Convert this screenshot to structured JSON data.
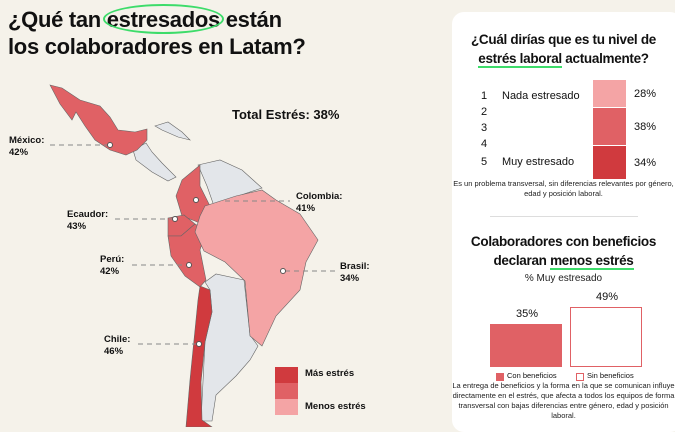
{
  "title": {
    "line1_pre": "¿Qué tan ",
    "line1_highlight": "estresados",
    "line1_post": " están",
    "line2": "los colaboradores en Latam?"
  },
  "map": {
    "total": "Total Estrés: 38%",
    "countries": [
      {
        "name": "México:",
        "value": "42%"
      },
      {
        "name": "Colombia:",
        "value": "41%"
      },
      {
        "name": "Ecaudor:",
        "value": "43%"
      },
      {
        "name": "Perú:",
        "value": "42%"
      },
      {
        "name": "Brasil:",
        "value": "34%"
      },
      {
        "name": "Chile:",
        "value": "46%"
      }
    ],
    "legend": {
      "high": "Más estrés",
      "low": "Menos estrés"
    },
    "colors": {
      "high": "#d03a3e",
      "mid": "#e06165",
      "low": "#f4a4a5",
      "other": "#e3e6ea"
    }
  },
  "panel1": {
    "question_l1": "¿Cuál dirías que es tu nivel de",
    "question_l2_ul": "estrés laboral",
    "question_l2_rest": " actualmente?",
    "scale": [
      "1",
      "2",
      "3",
      "4",
      "5"
    ],
    "scale_low": "Nada estresado",
    "scale_high": "Muy estresado",
    "note": "Es un problema transversal, sin diferencias relevantes por género, edad y posición laboral."
  },
  "panel2": {
    "title_l1": "Colaboradores con beneficios",
    "title_l2_pre": "declaran ",
    "title_l2_ul": "menos estrés",
    "subtitle": "% Muy estresado",
    "note": "La entrega de beneficios y la forma en la que se comunican influye directamente en el estrés, que afecta a todos los equipos de forma transversal con bajas diferencias entre género, edad y posición laboral."
  },
  "chart_data": [
    {
      "type": "bar",
      "title": "¿Cuál dirías que es tu nivel de estrés laboral actualmente?",
      "categories": [
        "1-2 Nada estresado",
        "3",
        "4-5 Muy estresado"
      ],
      "values": [
        28,
        38,
        34
      ],
      "labels": [
        "28%",
        "38%",
        "34%"
      ],
      "colors": [
        "#f4a4a5",
        "#e06165",
        "#d03a3e"
      ]
    },
    {
      "type": "bar",
      "title": "Colaboradores con beneficios declaran menos estrés",
      "ylabel": "% Muy estresado",
      "series": [
        {
          "name": "Con beneficios",
          "values": [
            35
          ],
          "label": "35%",
          "color": "#e06165"
        },
        {
          "name": "Sin beneficios",
          "values": [
            49
          ],
          "label": "49%",
          "color": "#ffffff"
        }
      ]
    }
  ]
}
